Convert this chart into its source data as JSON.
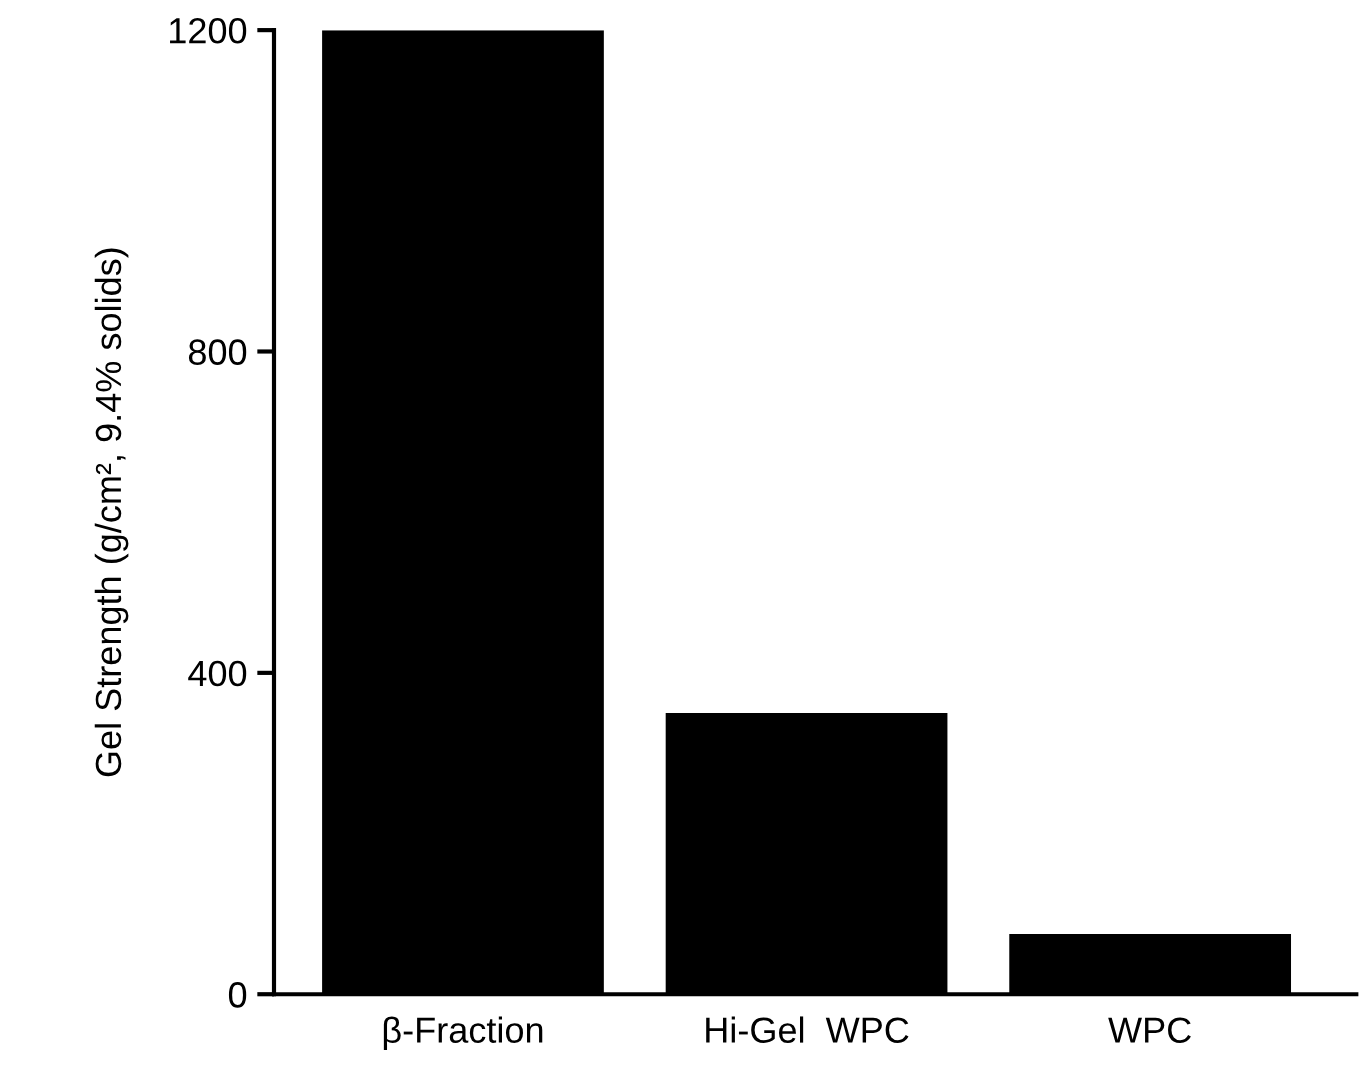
{
  "chart_data": {
    "type": "bar",
    "ylabel": "Gel Strength (g/cm², 9.4% solids)",
    "categories": [
      "β-Fraction",
      "Hi-Gel  WPC",
      "WPC"
    ],
    "values": [
      1200,
      350,
      75
    ],
    "color": "#000000",
    "ylim": [
      0,
      1200
    ],
    "yticks": [
      0,
      400,
      800,
      1200
    ],
    "grid": false,
    "legend": false
  }
}
